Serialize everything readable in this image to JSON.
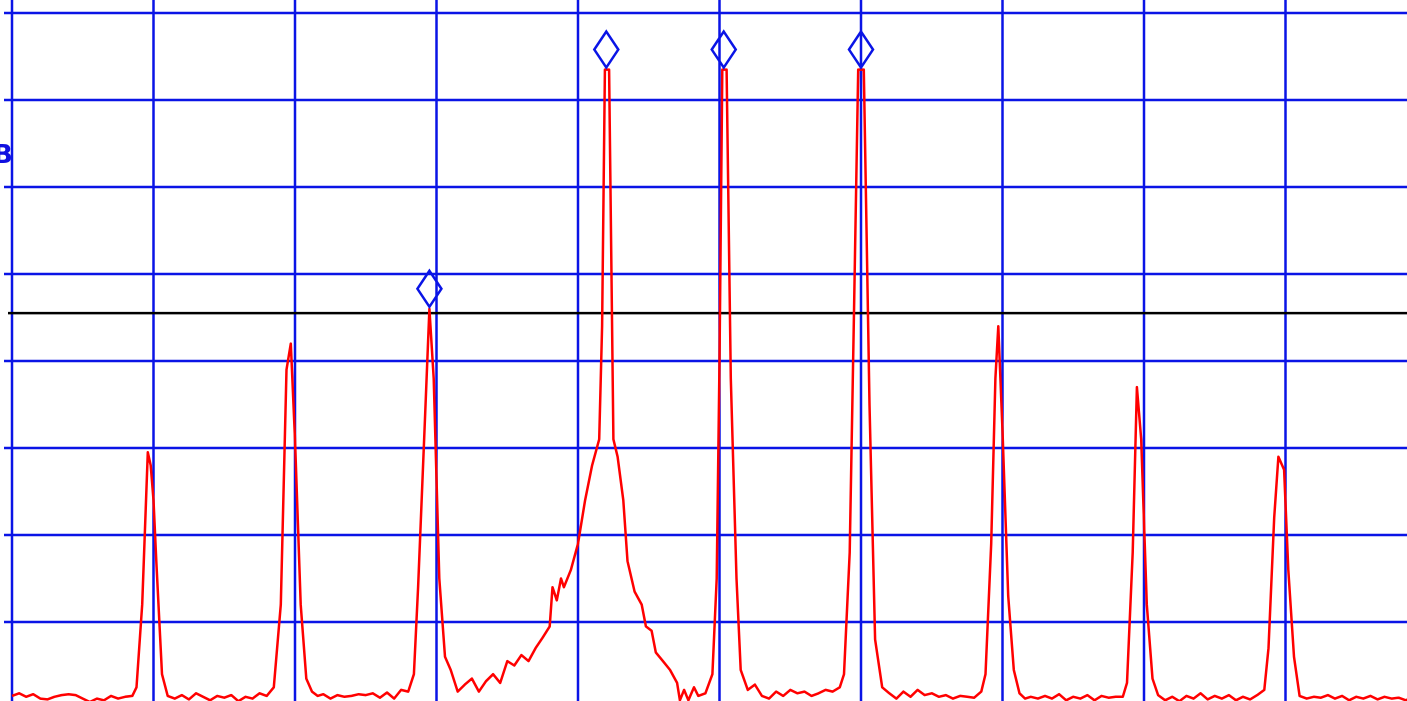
{
  "colors": {
    "grid": "#0a14e6",
    "trace": "#ff0000",
    "reference_line": "#000000",
    "marker": "#0a14e6",
    "background": "#ffffff"
  },
  "edge_text": {
    "partial_label": "B"
  },
  "chart_data": {
    "type": "line",
    "title": "",
    "xlabel": "",
    "ylabel": "",
    "grid": true,
    "x_divisions": 10,
    "y_divisions": 8,
    "xlim": [
      0,
      10
    ],
    "ylim": [
      0,
      8
    ],
    "reference_line_y": 4.55,
    "series": [
      {
        "points": [
          [
            0.0,
            0.15
          ],
          [
            0.05,
            0.18
          ],
          [
            0.1,
            0.14
          ],
          [
            0.15,
            0.17
          ],
          [
            0.2,
            0.12
          ],
          [
            0.25,
            0.11
          ],
          [
            0.3,
            0.14
          ],
          [
            0.35,
            0.16
          ],
          [
            0.4,
            0.17
          ],
          [
            0.45,
            0.16
          ],
          [
            0.5,
            0.12
          ],
          [
            0.55,
            0.08
          ],
          [
            0.6,
            0.12
          ],
          [
            0.65,
            0.1
          ],
          [
            0.7,
            0.15
          ],
          [
            0.75,
            0.12
          ],
          [
            0.8,
            0.14
          ],
          [
            0.85,
            0.15
          ],
          [
            0.88,
            0.25
          ],
          [
            0.92,
            1.2
          ],
          [
            0.96,
            2.95
          ],
          [
            0.98,
            2.8
          ],
          [
            1.0,
            2.4
          ],
          [
            1.02,
            1.7
          ],
          [
            1.06,
            0.4
          ],
          [
            1.1,
            0.15
          ],
          [
            1.15,
            0.12
          ],
          [
            1.2,
            0.16
          ],
          [
            1.25,
            0.11
          ],
          [
            1.3,
            0.18
          ],
          [
            1.35,
            0.14
          ],
          [
            1.4,
            0.1
          ],
          [
            1.45,
            0.15
          ],
          [
            1.5,
            0.13
          ],
          [
            1.55,
            0.16
          ],
          [
            1.6,
            0.09
          ],
          [
            1.65,
            0.14
          ],
          [
            1.7,
            0.12
          ],
          [
            1.75,
            0.18
          ],
          [
            1.8,
            0.15
          ],
          [
            1.85,
            0.25
          ],
          [
            1.9,
            1.2
          ],
          [
            1.94,
            3.9
          ],
          [
            1.97,
            4.2
          ],
          [
            2.0,
            3.1
          ],
          [
            2.04,
            1.2
          ],
          [
            2.08,
            0.35
          ],
          [
            2.12,
            0.2
          ],
          [
            2.16,
            0.15
          ],
          [
            2.2,
            0.17
          ],
          [
            2.25,
            0.12
          ],
          [
            2.3,
            0.16
          ],
          [
            2.35,
            0.14
          ],
          [
            2.4,
            0.15
          ],
          [
            2.45,
            0.17
          ],
          [
            2.5,
            0.16
          ],
          [
            2.55,
            0.18
          ],
          [
            2.6,
            0.13
          ],
          [
            2.65,
            0.19
          ],
          [
            2.7,
            0.12
          ],
          [
            2.75,
            0.22
          ],
          [
            2.8,
            0.2
          ],
          [
            2.84,
            0.4
          ],
          [
            2.87,
            1.4
          ],
          [
            2.92,
            3.4
          ],
          [
            2.95,
            4.6
          ],
          [
            2.98,
            3.8
          ],
          [
            3.02,
            1.5
          ],
          [
            3.06,
            0.6
          ],
          [
            3.1,
            0.45
          ],
          [
            3.15,
            0.2
          ],
          [
            3.2,
            0.28
          ],
          [
            3.25,
            0.35
          ],
          [
            3.3,
            0.2
          ],
          [
            3.35,
            0.32
          ],
          [
            3.4,
            0.4
          ],
          [
            3.45,
            0.3
          ],
          [
            3.5,
            0.55
          ],
          [
            3.55,
            0.5
          ],
          [
            3.6,
            0.62
          ],
          [
            3.65,
            0.55
          ],
          [
            3.7,
            0.7
          ],
          [
            3.75,
            0.82
          ],
          [
            3.8,
            0.95
          ],
          [
            3.82,
            1.4
          ],
          [
            3.85,
            1.25
          ],
          [
            3.88,
            1.5
          ],
          [
            3.9,
            1.4
          ],
          [
            3.95,
            1.6
          ],
          [
            4.0,
            1.9
          ],
          [
            4.05,
            2.4
          ],
          [
            4.1,
            2.8
          ],
          [
            4.15,
            3.1
          ],
          [
            4.17,
            4.4
          ],
          [
            4.19,
            7.35
          ],
          [
            4.22,
            7.35
          ],
          [
            4.25,
            3.1
          ],
          [
            4.28,
            2.9
          ],
          [
            4.32,
            2.4
          ],
          [
            4.35,
            1.7
          ],
          [
            4.4,
            1.35
          ],
          [
            4.45,
            1.2
          ],
          [
            4.48,
            0.95
          ],
          [
            4.52,
            0.9
          ],
          [
            4.55,
            0.65
          ],
          [
            4.6,
            0.55
          ],
          [
            4.65,
            0.45
          ],
          [
            4.7,
            0.3
          ],
          [
            4.72,
            0.1
          ],
          [
            4.75,
            0.22
          ],
          [
            4.78,
            0.1
          ],
          [
            4.82,
            0.25
          ],
          [
            4.85,
            0.15
          ],
          [
            4.9,
            0.18
          ],
          [
            4.95,
            0.4
          ],
          [
            4.98,
            1.5
          ],
          [
            5.0,
            4.0
          ],
          [
            5.02,
            7.35
          ],
          [
            5.05,
            7.35
          ],
          [
            5.08,
            3.8
          ],
          [
            5.12,
            1.5
          ],
          [
            5.15,
            0.45
          ],
          [
            5.2,
            0.22
          ],
          [
            5.25,
            0.28
          ],
          [
            5.3,
            0.15
          ],
          [
            5.35,
            0.12
          ],
          [
            5.4,
            0.2
          ],
          [
            5.45,
            0.15
          ],
          [
            5.5,
            0.22
          ],
          [
            5.55,
            0.18
          ],
          [
            5.6,
            0.2
          ],
          [
            5.65,
            0.15
          ],
          [
            5.7,
            0.18
          ],
          [
            5.75,
            0.22
          ],
          [
            5.8,
            0.2
          ],
          [
            5.85,
            0.25
          ],
          [
            5.88,
            0.4
          ],
          [
            5.92,
            1.8
          ],
          [
            5.95,
            4.5
          ],
          [
            5.98,
            7.35
          ],
          [
            6.02,
            7.35
          ],
          [
            6.06,
            3.5
          ],
          [
            6.1,
            0.8
          ],
          [
            6.15,
            0.25
          ],
          [
            6.2,
            0.18
          ],
          [
            6.25,
            0.12
          ],
          [
            6.3,
            0.2
          ],
          [
            6.35,
            0.14
          ],
          [
            6.4,
            0.22
          ],
          [
            6.45,
            0.16
          ],
          [
            6.5,
            0.18
          ],
          [
            6.55,
            0.14
          ],
          [
            6.6,
            0.16
          ],
          [
            6.65,
            0.12
          ],
          [
            6.7,
            0.15
          ],
          [
            6.75,
            0.14
          ],
          [
            6.8,
            0.13
          ],
          [
            6.85,
            0.2
          ],
          [
            6.88,
            0.4
          ],
          [
            6.92,
            1.9
          ],
          [
            6.95,
            3.8
          ],
          [
            6.97,
            4.4
          ],
          [
            7.0,
            3.2
          ],
          [
            7.04,
            1.3
          ],
          [
            7.08,
            0.45
          ],
          [
            7.12,
            0.18
          ],
          [
            7.16,
            0.12
          ],
          [
            7.2,
            0.14
          ],
          [
            7.25,
            0.12
          ],
          [
            7.3,
            0.15
          ],
          [
            7.35,
            0.12
          ],
          [
            7.4,
            0.17
          ],
          [
            7.45,
            0.1
          ],
          [
            7.5,
            0.14
          ],
          [
            7.55,
            0.12
          ],
          [
            7.6,
            0.16
          ],
          [
            7.65,
            0.1
          ],
          [
            7.7,
            0.15
          ],
          [
            7.75,
            0.13
          ],
          [
            7.8,
            0.14
          ],
          [
            7.85,
            0.14
          ],
          [
            7.88,
            0.3
          ],
          [
            7.92,
            1.8
          ],
          [
            7.95,
            3.7
          ],
          [
            7.98,
            3.1
          ],
          [
            8.02,
            1.2
          ],
          [
            8.06,
            0.35
          ],
          [
            8.1,
            0.16
          ],
          [
            8.15,
            0.1
          ],
          [
            8.2,
            0.14
          ],
          [
            8.25,
            0.09
          ],
          [
            8.3,
            0.15
          ],
          [
            8.35,
            0.12
          ],
          [
            8.4,
            0.18
          ],
          [
            8.45,
            0.11
          ],
          [
            8.5,
            0.15
          ],
          [
            8.55,
            0.12
          ],
          [
            8.6,
            0.16
          ],
          [
            8.65,
            0.1
          ],
          [
            8.7,
            0.14
          ],
          [
            8.75,
            0.11
          ],
          [
            8.8,
            0.16
          ],
          [
            8.85,
            0.22
          ],
          [
            8.88,
            0.7
          ],
          [
            8.92,
            2.2
          ],
          [
            8.95,
            2.9
          ],
          [
            8.99,
            2.75
          ],
          [
            9.02,
            1.6
          ],
          [
            9.06,
            0.6
          ],
          [
            9.1,
            0.15
          ],
          [
            9.15,
            0.12
          ],
          [
            9.2,
            0.14
          ],
          [
            9.25,
            0.13
          ],
          [
            9.3,
            0.16
          ],
          [
            9.35,
            0.12
          ],
          [
            9.4,
            0.15
          ],
          [
            9.45,
            0.1
          ],
          [
            9.5,
            0.14
          ],
          [
            9.55,
            0.12
          ],
          [
            9.6,
            0.15
          ],
          [
            9.65,
            0.11
          ],
          [
            9.7,
            0.14
          ],
          [
            9.75,
            0.12
          ],
          [
            9.8,
            0.13
          ],
          [
            9.85,
            0.1
          ],
          [
            9.9,
            0.14
          ],
          [
            9.95,
            0.11
          ],
          [
            10.0,
            0.12
          ]
        ]
      }
    ],
    "markers": [
      {
        "x": 2.95,
        "y": 4.6
      },
      {
        "x": 4.2,
        "y": 7.35
      },
      {
        "x": 5.03,
        "y": 7.35
      },
      {
        "x": 6.0,
        "y": 7.35
      }
    ]
  }
}
